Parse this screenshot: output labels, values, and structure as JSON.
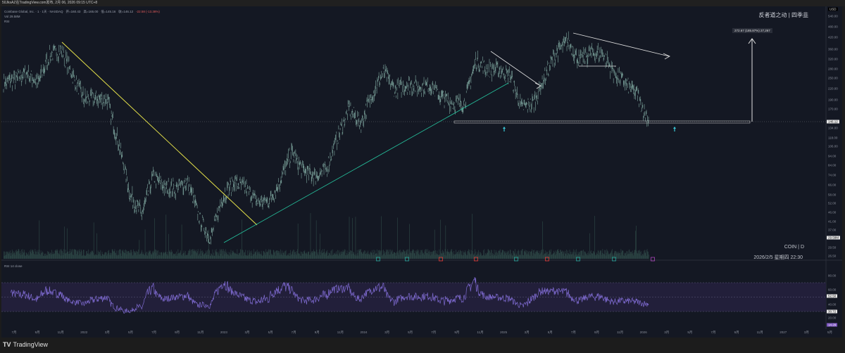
{
  "header": {
    "published": "50JksAZ在TradingView.com发布, 2月 06, 2026 09:15 UTC+8"
  },
  "legend": {
    "symbol": "Coinbase Global, Inc. · 1 · 1天 · NASDAQ",
    "open": "开=160.43",
    "high": "高=165.00",
    "low": "低=145.16",
    "close": "收=146.12",
    "change": "-22.58 (-13.38%)",
    "volume": "Vol 29.58M",
    "indicator": "RSI"
  },
  "watermark": "反者道之动 | 四季韭",
  "symbol_tag": "COIN | D",
  "datetime": "2026/2/5 星期四 22:30",
  "measure_label": "272.67 (185.87%) 27,267",
  "price_axis": {
    "currency": "USD",
    "ticks": [
      "540.00",
      "480.00",
      "420.00",
      "360.00",
      "320.00",
      "280.00",
      "250.00",
      "220.00",
      "190.00",
      "170.00",
      "134.00",
      "118.00",
      "106.00",
      "94.00",
      "84.00",
      "74.00",
      "66.00",
      "58.00",
      "52.00",
      "46.00",
      "41.00",
      "37.00",
      "29.50",
      "26.50"
    ],
    "last_price": "146.12",
    "last_volume": "29.58M"
  },
  "rsi_axis": {
    "ticks": [
      "80.00",
      "60.00",
      "40.00",
      "20.00"
    ],
    "ma_value": "52.50",
    "lower_value": "30.72",
    "rsi_value": "14.29",
    "legend": "RSI 14 close"
  },
  "time_axis": [
    "7月",
    "9月",
    "11月",
    "2022",
    "3月",
    "5月",
    "7月",
    "9月",
    "11月",
    "2023",
    "3月",
    "5月",
    "7月",
    "9月",
    "11月",
    "2024",
    "3月",
    "5月",
    "7月",
    "9月",
    "11月",
    "2025",
    "3月",
    "5月",
    "7月",
    "9月",
    "11月",
    "2026",
    "3月",
    "5月",
    "7月",
    "9月",
    "11月",
    "2027",
    "3月",
    "5月"
  ],
  "footer": "TradingView",
  "colors": {
    "bg": "#141823",
    "candle": "#7fa8a0",
    "rsi": "#7e6ad0",
    "yellow_line": "#e6e24a",
    "teal_line": "#26c6a0"
  },
  "chart_data": {
    "type": "line",
    "title": "COIN 1D",
    "months": [
      "2021-06",
      "2021-07",
      "2021-08",
      "2021-09",
      "2021-10",
      "2021-11",
      "2021-12",
      "2022-01",
      "2022-02",
      "2022-03",
      "2022-04",
      "2022-05",
      "2022-06",
      "2022-07",
      "2022-08",
      "2022-09",
      "2022-10",
      "2022-11",
      "2022-12",
      "2023-01",
      "2023-02",
      "2023-03",
      "2023-04",
      "2023-05",
      "2023-06",
      "2023-07",
      "2023-08",
      "2023-09",
      "2023-10",
      "2023-11",
      "2023-12",
      "2024-01",
      "2024-02",
      "2024-03",
      "2024-04",
      "2024-05",
      "2024-06",
      "2024-07",
      "2024-08",
      "2024-09",
      "2024-10",
      "2024-11",
      "2024-12",
      "2025-01",
      "2025-02",
      "2025-03",
      "2025-04",
      "2025-05",
      "2025-06",
      "2025-07",
      "2025-08",
      "2025-09",
      "2025-10",
      "2025-11",
      "2025-12",
      "2026-01",
      "2026-02"
    ],
    "close": [
      230,
      240,
      260,
      230,
      320,
      345,
      250,
      190,
      190,
      190,
      110,
      60,
      47,
      75,
      65,
      65,
      70,
      45,
      35,
      58,
      70,
      65,
      55,
      55,
      70,
      100,
      80,
      75,
      80,
      120,
      170,
      140,
      200,
      260,
      210,
      225,
      220,
      225,
      195,
      180,
      180,
      300,
      270,
      270,
      250,
      170,
      180,
      250,
      330,
      380,
      300,
      330,
      330,
      260,
      230,
      200,
      146
    ],
    "ylim": [
      26,
      540
    ],
    "yscale": "log"
  }
}
